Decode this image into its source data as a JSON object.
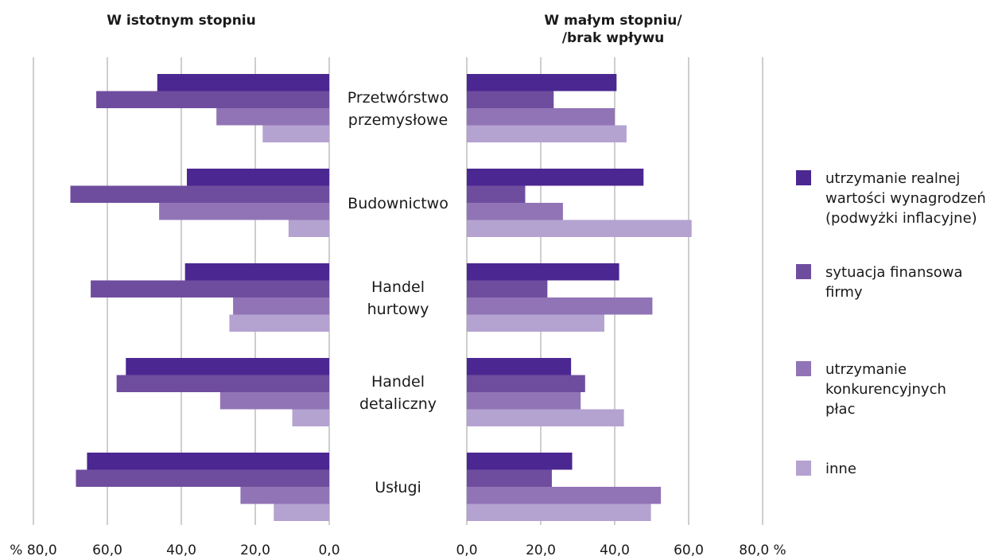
{
  "chart_data": {
    "type": "bar",
    "orientation": "horizontal",
    "layout": "two mirrored panels",
    "panels": [
      {
        "title": [
          "W istotnym stopniu"
        ],
        "direction": "left",
        "xlim": [
          0,
          80
        ],
        "ticks": [
          "% 80,0",
          "60,0",
          "40,0",
          "20,0",
          "0,0"
        ]
      },
      {
        "title": [
          "W małym stopniu/",
          "/brak wpływu"
        ],
        "direction": "right",
        "xlim": [
          0,
          80
        ],
        "ticks": [
          "0,0",
          "20,0",
          "40,0",
          "60,0",
          "80,0 %"
        ]
      }
    ],
    "categories": [
      [
        "Przetwórstwo",
        "przemysłowe"
      ],
      [
        "Budownictwo"
      ],
      [
        "Handel",
        "hurtowy"
      ],
      [
        "Handel",
        "detaliczny"
      ],
      [
        "Usługi"
      ]
    ],
    "series": [
      {
        "name": [
          "utrzymanie realnej",
          "wartości wynagrodzeń",
          "(podwyżki inflacyjne)"
        ],
        "color": "#4b2791",
        "left": [
          46.5,
          38.5,
          39.0,
          55.0,
          65.5
        ],
        "right": [
          40.5,
          47.8,
          41.2,
          28.2,
          28.5
        ]
      },
      {
        "name": [
          "sytuacja finansowa",
          "firmy"
        ],
        "color": "#6f4d9e",
        "left": [
          63.0,
          70.0,
          64.5,
          57.5,
          68.5
        ],
        "right": [
          23.5,
          15.8,
          21.8,
          32.0,
          23.0
        ]
      },
      {
        "name": [
          "utrzymanie",
          "konkurencyjnych",
          "płac"
        ],
        "color": "#9174b6",
        "left": [
          30.5,
          46.0,
          26.0,
          29.5,
          24.0
        ],
        "right": [
          40.0,
          26.0,
          50.2,
          30.8,
          52.5
        ]
      },
      {
        "name": [
          "inne"
        ],
        "color": "#b4a2d0",
        "left": [
          18.0,
          11.0,
          27.0,
          10.0,
          15.0
        ],
        "right": [
          43.2,
          60.8,
          37.2,
          42.5,
          49.8
        ]
      }
    ],
    "grid": true,
    "legend_position": "right"
  }
}
